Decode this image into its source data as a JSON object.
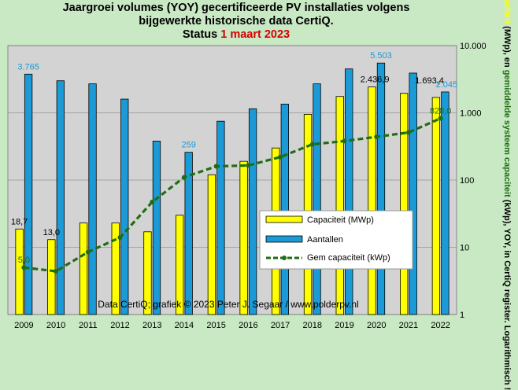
{
  "chart_data": {
    "type": "bar",
    "title_line1": "Jaargroei volumes (YOY) gecertificeerde  PV installaties  volgens",
    "title_line2": "bijgewerkte historische  data CertiQ.",
    "title_line3_prefix": "Status ",
    "title_line3_date": "1 maart 2023",
    "categories": [
      "2009",
      "2010",
      "2011",
      "2012",
      "2013",
      "2014",
      "2015",
      "2016",
      "2017",
      "2018",
      "2019",
      "2020",
      "2021",
      "2022"
    ],
    "series": [
      {
        "name": "Capaciteit (MWp)",
        "type": "bar",
        "color": "#ffff00",
        "values": [
          18.7,
          13.0,
          23,
          23,
          17,
          30,
          120,
          190,
          300,
          950,
          1750,
          2436.9,
          1950,
          1693.4
        ]
      },
      {
        "name": "Aantallen",
        "type": "bar",
        "color": "#1a9ad6",
        "values": [
          3765,
          3000,
          2700,
          1600,
          380,
          259,
          750,
          1150,
          1350,
          2700,
          4500,
          5503,
          3900,
          2045
        ]
      },
      {
        "name": "Gem capaciteit (kWp)",
        "type": "line",
        "color": "#1f6e12",
        "values": [
          5.0,
          4.4,
          8.5,
          14,
          47,
          110,
          160,
          165,
          220,
          340,
          380,
          440,
          510,
          828
        ]
      }
    ],
    "data_labels": [
      {
        "series": 0,
        "index": 0,
        "text": "18,7"
      },
      {
        "series": 0,
        "index": 1,
        "text": "13,0"
      },
      {
        "series": 0,
        "index": 11,
        "text": "2.436,9"
      },
      {
        "series": 0,
        "index": 13,
        "text": "1.693,4"
      },
      {
        "series": 1,
        "index": 0,
        "text": "3.765"
      },
      {
        "series": 1,
        "index": 5,
        "text": "259"
      },
      {
        "series": 1,
        "index": 11,
        "text": "5.503"
      },
      {
        "series": 1,
        "index": 13,
        "text": "2.045"
      },
      {
        "series": 2,
        "index": 0,
        "text": "5,0"
      },
      {
        "series": 2,
        "index": 13,
        "text": "828,0"
      }
    ],
    "y_scale": "log",
    "ylim": [
      1,
      10000
    ],
    "y_ticks": [
      {
        "value": 1,
        "label": "1"
      },
      {
        "value": 10,
        "label": "10"
      },
      {
        "value": 100,
        "label": "100"
      },
      {
        "value": 1000,
        "label": "1.000"
      },
      {
        "value": 10000,
        "label": "10.000"
      }
    ],
    "y_axis_side": "right",
    "ylabel_parts": [
      {
        "text": "Aantallen, ",
        "color": "#1a9ad6"
      },
      {
        "text": "capaciteit",
        "color": "#ffff00"
      },
      {
        "text": " (MWp), en ",
        "color": "#000000"
      },
      {
        "text": "gemiddelde systeem capaciteit",
        "color": "#1f6e12"
      },
      {
        "text": " (kWp), YOY, in CertiQ register. Logarithmisch !",
        "color": "#000000"
      }
    ],
    "legend_position": "center-right",
    "grid": "horizontal",
    "annotation": "Data CertiQ;  grafiek © 2023  Peter J. Segaar / www.polderpv.nl",
    "colors": {
      "plot_background": "#d3d3d3",
      "page_background": "#c9e8c4",
      "title_accent": "#d40000"
    }
  }
}
